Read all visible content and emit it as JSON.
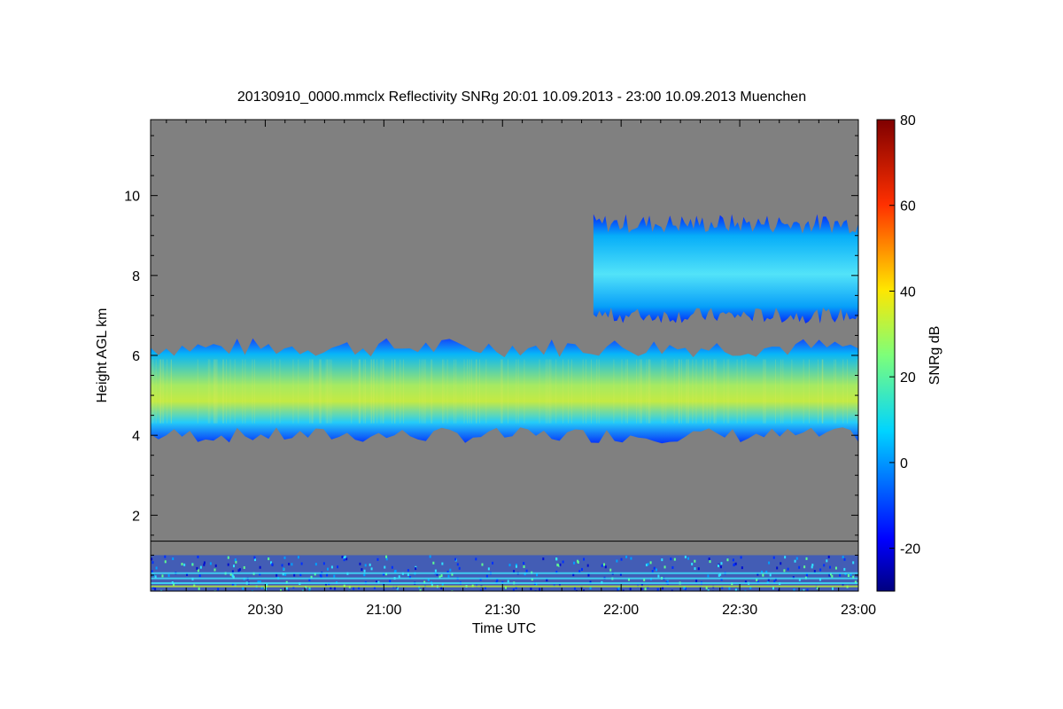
{
  "chart_data": {
    "type": "heatmap",
    "title": "20130910_0000.mmclx Reflectivity SNRg   20:01 10.09.2013 - 23:00 10.09.2013 Muenchen",
    "xlabel": "Time UTC",
    "ylabel": "Height AGL km",
    "xlim_minutes": [
      1201,
      1380
    ],
    "ylim_km": [
      0.1,
      11.9
    ],
    "x_ticks": [
      {
        "minute": 1230,
        "label": "20:30"
      },
      {
        "minute": 1260,
        "label": "21:00"
      },
      {
        "minute": 1290,
        "label": "21:30"
      },
      {
        "minute": 1320,
        "label": "22:00"
      },
      {
        "minute": 1350,
        "label": "22:30"
      },
      {
        "minute": 1380,
        "label": "23:00"
      }
    ],
    "y_ticks": [
      {
        "value": 2,
        "label": "2"
      },
      {
        "value": 4,
        "label": "4"
      },
      {
        "value": 6,
        "label": "6"
      },
      {
        "value": 8,
        "label": "8"
      },
      {
        "value": 10,
        "label": "10"
      }
    ],
    "background_color": "#808080",
    "reference_line_km": 1.35,
    "colorbar": {
      "label": "SNRg dB",
      "range": [
        -30,
        80
      ],
      "ticks": [
        {
          "value": -20,
          "label": "-20"
        },
        {
          "value": 0,
          "label": "0"
        },
        {
          "value": 20,
          "label": "20"
        },
        {
          "value": 40,
          "label": "40"
        },
        {
          "value": 60,
          "label": "60"
        },
        {
          "value": 80,
          "label": "80"
        }
      ],
      "colormap": "jet"
    },
    "features": [
      {
        "name": "mid-level cloud layer",
        "t_start": 1201,
        "t_end": 1380,
        "base_km": 4.0,
        "top_km": 6.2,
        "peak_dB": 35
      },
      {
        "name": "upper cloud layer",
        "t_start": 1313,
        "t_end": 1380,
        "base_km": 7.0,
        "top_km": 9.3,
        "peak_dB": 15
      },
      {
        "name": "near-surface clutter",
        "t_start": 1201,
        "t_end": 1380,
        "base_km": 0.1,
        "top_km": 1.0,
        "peak_dB": 40
      }
    ]
  }
}
